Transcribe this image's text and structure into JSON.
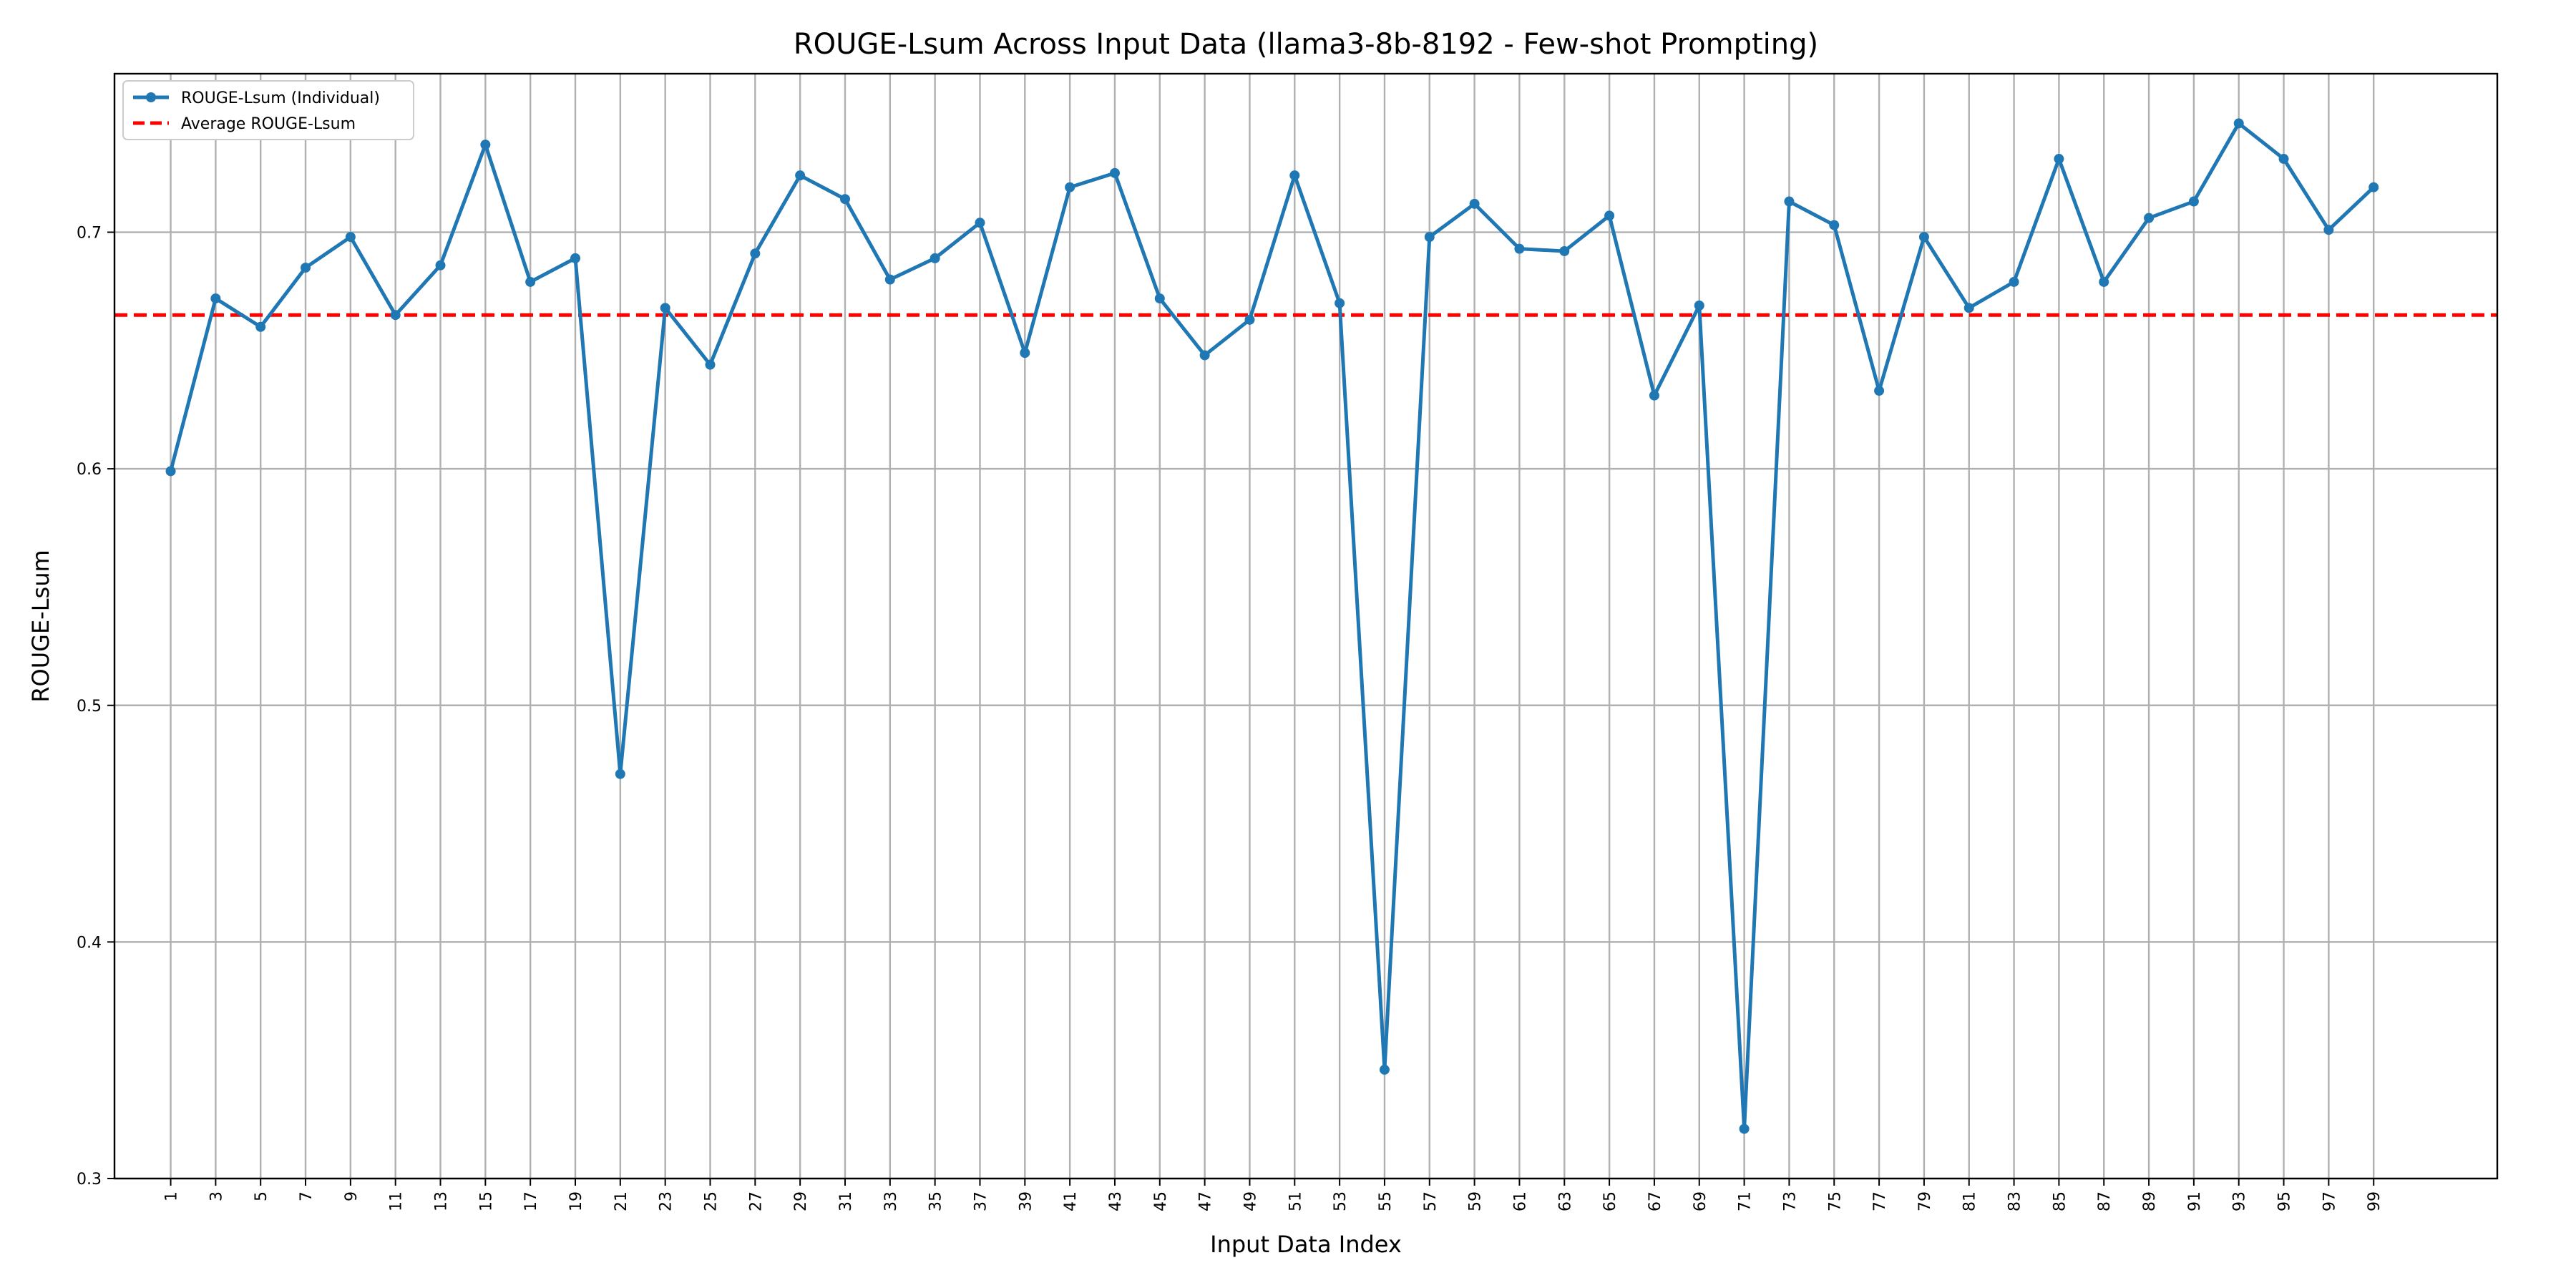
{
  "chart_data": {
    "type": "line",
    "title": "ROUGE-Lsum Across Input Data (llama3-8b-8192 - Few-shot Prompting)",
    "xlabel": "Input Data Index",
    "ylabel": "ROUGE-Lsum",
    "x": [
      1,
      3,
      5,
      7,
      9,
      11,
      13,
      15,
      17,
      19,
      21,
      23,
      25,
      27,
      29,
      31,
      33,
      35,
      37,
      39,
      41,
      43,
      45,
      47,
      49,
      51,
      53,
      55,
      57,
      59,
      61,
      63,
      65,
      67,
      69,
      71,
      73,
      75,
      77,
      79,
      81,
      83,
      85,
      87,
      89,
      91,
      93,
      95,
      97,
      99
    ],
    "xticks": [
      "1",
      "3",
      "5",
      "7",
      "9",
      "11",
      "13",
      "15",
      "17",
      "19",
      "21",
      "23",
      "25",
      "27",
      "29",
      "31",
      "33",
      "35",
      "37",
      "39",
      "41",
      "43",
      "45",
      "47",
      "49",
      "51",
      "53",
      "55",
      "57",
      "59",
      "61",
      "63",
      "65",
      "67",
      "69",
      "71",
      "73",
      "75",
      "77",
      "79",
      "81",
      "83",
      "85",
      "87",
      "89",
      "91",
      "93",
      "95",
      "97",
      "99"
    ],
    "xlim": [
      -1.5,
      104.5
    ],
    "ylim": [
      0.3,
      0.767
    ],
    "yticks": [
      "0.3",
      "0.4",
      "0.5",
      "0.6",
      "0.7"
    ],
    "grid": true,
    "legend_position": "top-left",
    "series": [
      {
        "name": "ROUGE-Lsum (Individual)",
        "color": "#1f77b4",
        "style": "solid-with-markers",
        "values": [
          0.599,
          0.672,
          0.66,
          0.685,
          0.698,
          0.665,
          0.686,
          0.737,
          0.679,
          0.689,
          0.471,
          0.668,
          0.644,
          0.691,
          0.724,
          0.714,
          0.68,
          0.689,
          0.704,
          0.649,
          0.719,
          0.725,
          0.672,
          0.648,
          0.663,
          0.724,
          0.67,
          0.346,
          0.698,
          0.712,
          0.693,
          0.692,
          0.707,
          0.631,
          0.669,
          0.321,
          0.713,
          0.703,
          0.633,
          0.698,
          0.668,
          0.679,
          0.731,
          0.679,
          0.706,
          0.713,
          0.746,
          0.731,
          0.701,
          0.719
        ]
      },
      {
        "name": "Average ROUGE-Lsum",
        "color": "#ff0000",
        "style": "dashed",
        "value": 0.665
      }
    ]
  }
}
